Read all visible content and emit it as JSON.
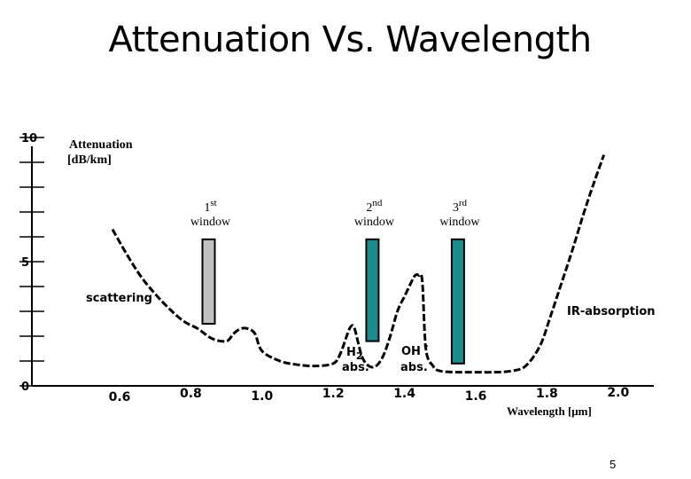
{
  "slide": {
    "title": "Attenuation Vs. Wavelength",
    "page_number": "5"
  },
  "chart_data": {
    "type": "line",
    "title": "Attenuation Vs. Wavelength",
    "ylabel_line1": "Attenuation",
    "ylabel_line2": "[dB/km]",
    "xlabel": "Wavelength [μm]",
    "xlim": [
      0.5,
      2.05
    ],
    "ylim": [
      0,
      10
    ],
    "x_ticks": [
      "0.6",
      "0.8",
      "1.0",
      "1.2",
      "1.4",
      "1.6",
      "1.8",
      "2.0"
    ],
    "y_tick_labels": [
      "10",
      "5",
      "0"
    ],
    "y_minor_ticks": [
      0,
      1,
      2,
      3,
      4,
      5,
      6,
      7,
      8,
      9,
      10
    ],
    "series": [
      {
        "line_style": "dashed",
        "x": [
          0.58,
          0.62,
          0.66,
          0.7,
          0.74,
          0.78,
          0.82,
          0.86,
          0.9,
          0.92,
          0.94,
          0.96,
          0.98,
          1.0,
          1.05,
          1.1,
          1.15,
          1.2,
          1.22,
          1.24,
          1.25,
          1.26,
          1.28,
          1.3,
          1.32,
          1.34,
          1.36,
          1.38,
          1.4,
          1.42,
          1.43,
          1.44,
          1.45,
          1.46,
          1.48,
          1.5,
          1.55,
          1.6,
          1.65,
          1.7,
          1.74,
          1.78,
          1.81,
          1.84,
          1.87,
          1.9,
          1.93,
          1.96
        ],
        "y": [
          6.3,
          5.3,
          4.4,
          3.7,
          3.1,
          2.6,
          2.3,
          1.9,
          1.8,
          2.1,
          2.3,
          2.3,
          2.1,
          1.4,
          1.0,
          0.85,
          0.8,
          0.9,
          1.3,
          2.1,
          2.4,
          2.3,
          1.2,
          0.8,
          0.8,
          1.2,
          2.0,
          3.0,
          3.6,
          4.2,
          4.45,
          4.45,
          4.2,
          1.5,
          0.8,
          0.6,
          0.55,
          0.55,
          0.55,
          0.6,
          0.8,
          1.6,
          2.8,
          4.1,
          5.4,
          6.8,
          8.1,
          9.3
        ]
      }
    ],
    "windows": [
      {
        "label_num": "1",
        "label_sup": "st",
        "label_word": "window",
        "x": 0.85,
        "y_top": 5.9,
        "y_bottom": 2.5,
        "color": "#c0c0c0"
      },
      {
        "label_num": "2",
        "label_sup": "nd",
        "label_word": "window",
        "x": 1.31,
        "y_top": 5.9,
        "y_bottom": 1.8,
        "color": "#1e8c8c"
      },
      {
        "label_num": "3",
        "label_sup": "rd",
        "label_word": "window",
        "x": 1.55,
        "y_top": 5.9,
        "y_bottom": 0.9,
        "color": "#1e8c8c"
      }
    ],
    "annotations": {
      "scattering": "scattering",
      "ir_absorption": "IR-absorption",
      "h2_main": "H",
      "h2_sub": "2",
      "h2_abs": "abs.",
      "oh_main": "OH",
      "oh_sup": "-",
      "oh_abs": "abs."
    },
    "colors": {
      "curve": "#000000",
      "window_dark": "#1e8c8c",
      "window_light": "#c0c0c0"
    }
  }
}
